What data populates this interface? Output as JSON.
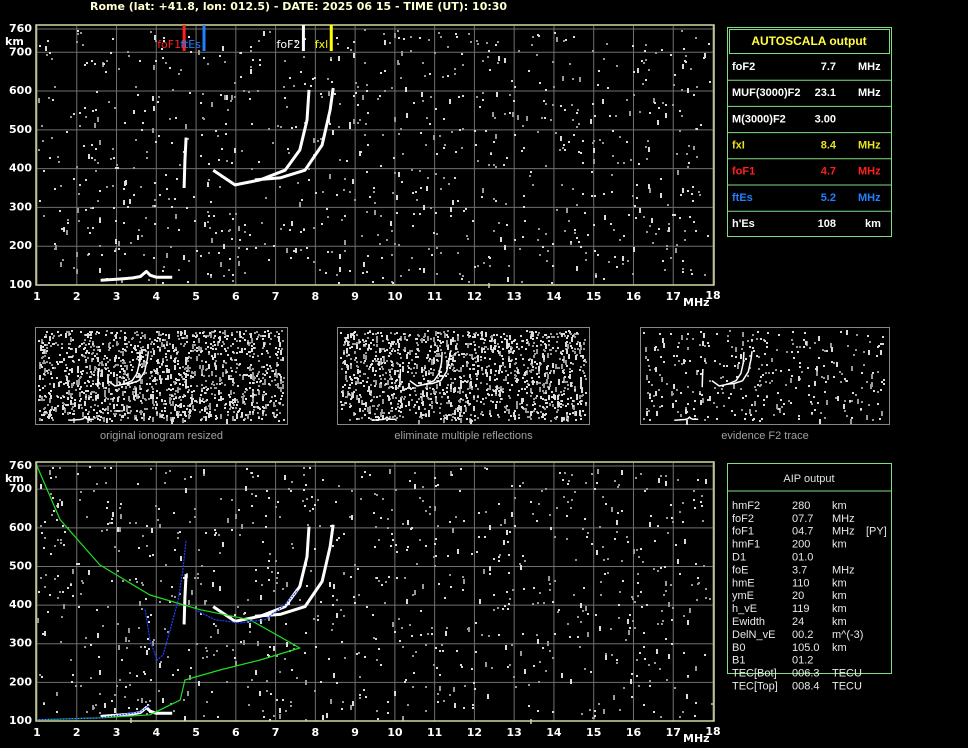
{
  "header": "Rome (lat: +41.8, lon: 012.5) - DATE: 2025 06 15 - TIME (UT): 10:30",
  "chart_data": [
    {
      "type": "line",
      "xlim": [
        1,
        18
      ],
      "ylim": [
        100,
        760
      ],
      "xticks": [
        1,
        2,
        3,
        4,
        5,
        6,
        7,
        8,
        9,
        10,
        11,
        12,
        13,
        14,
        15,
        16,
        17,
        18
      ],
      "yticks": [
        100,
        200,
        300,
        400,
        500,
        600,
        700,
        760
      ],
      "xlabel": "MHz",
      "ylabel": "km",
      "grid": true,
      "markers": [
        {
          "label": "foF1",
          "value": 4.7,
          "color": "#ff2020"
        },
        {
          "label": "ftEs",
          "value": 5.2,
          "color": "#2080ff"
        },
        {
          "label": "foF2",
          "value": 7.7,
          "color": "#ffffff"
        },
        {
          "label": "fxl",
          "value": 8.4,
          "color": "#ffff00"
        }
      ],
      "series": [
        {
          "color": "#ffffff",
          "x": [
            2.6,
            3.0,
            3.4,
            3.6,
            3.75,
            3.85,
            4.0,
            4.4
          ],
          "y": [
            112,
            115,
            118,
            122,
            135,
            125,
            120,
            120
          ]
        },
        {
          "color": "#ffffff",
          "x": [
            4.7,
            4.72,
            4.75
          ],
          "y": [
            350,
            420,
            480
          ]
        },
        {
          "color": "#ffffff",
          "x": [
            5.43,
            5.98,
            6.61,
            7.24,
            7.61,
            7.79,
            7.84
          ],
          "y": [
            396,
            358,
            371,
            396,
            448,
            525,
            603
          ]
        },
        {
          "color": "#ffffff",
          "x": [
            6.48,
            7.11,
            7.74,
            8.17,
            8.37,
            8.45
          ],
          "y": [
            371,
            376,
            396,
            461,
            551,
            608
          ]
        }
      ]
    },
    {
      "type": "line",
      "xlim": [
        1,
        18
      ],
      "ylim": [
        100,
        760
      ],
      "xticks": [
        1,
        2,
        3,
        4,
        5,
        6,
        7,
        8,
        9,
        10,
        11,
        12,
        13,
        14,
        15,
        16,
        17,
        18
      ],
      "yticks": [
        100,
        200,
        300,
        400,
        500,
        600,
        700,
        760
      ],
      "xlabel": "MHz",
      "ylabel": "km",
      "grid": true,
      "series": [
        {
          "color": "#ffffff",
          "x": [
            2.6,
            3.0,
            3.4,
            3.6,
            3.75,
            3.85,
            4.0,
            4.4
          ],
          "y": [
            112,
            115,
            118,
            122,
            135,
            125,
            120,
            120
          ]
        },
        {
          "color": "#ffffff",
          "x": [
            4.7,
            4.72,
            4.75
          ],
          "y": [
            350,
            420,
            480
          ]
        },
        {
          "color": "#ffffff",
          "x": [
            5.43,
            5.98,
            6.61,
            7.24,
            7.61,
            7.79,
            7.84
          ],
          "y": [
            396,
            358,
            371,
            396,
            448,
            525,
            603
          ]
        },
        {
          "color": "#ffffff",
          "x": [
            6.48,
            7.11,
            7.74,
            8.17,
            8.37,
            8.45
          ],
          "y": [
            371,
            376,
            396,
            461,
            551,
            608
          ]
        },
        {
          "color": "#22dd22",
          "x": [
            1,
            1.58,
            2.58,
            3.84,
            5.1,
            6.36,
            7.61,
            6.61,
            5.6,
            4.72,
            4.6,
            3.84,
            2.58,
            1
          ],
          "y": [
            760,
            621,
            504,
            426,
            388,
            362,
            289,
            258,
            232,
            206,
            154,
            116,
            108,
            103
          ]
        },
        {
          "color": "#2040ff",
          "x": [
            1,
            2.58,
            3.59,
            3.84
          ],
          "y": [
            103,
            108,
            123,
            141
          ]
        },
        {
          "color": "#2040ff",
          "x": [
            3.72,
            3.84,
            4.02,
            4.17,
            4.35,
            4.55,
            4.67,
            4.75
          ],
          "y": [
            388,
            310,
            258,
            271,
            336,
            413,
            491,
            569
          ]
        },
        {
          "color": "#2040ff",
          "x": [
            4.97,
            5.48,
            6.11,
            6.73,
            7.24,
            7.56
          ],
          "y": [
            388,
            362,
            354,
            362,
            401,
            439
          ]
        }
      ]
    }
  ],
  "thumbnails": [
    {
      "caption": "original ionogram resized"
    },
    {
      "caption": "eliminate multiple reflections"
    },
    {
      "caption": "evidence F2 trace"
    }
  ],
  "autoscala": {
    "title": "AUTOSCALA output",
    "rows": [
      {
        "label": "foF2",
        "value": 7.7,
        "unit": "MHz",
        "color": "#ffffff"
      },
      {
        "label": "MUF(3000)F2",
        "value": 23.1,
        "unit": "MHz",
        "color": "#ffffff"
      },
      {
        "label": "M(3000)F2",
        "value": "3.00",
        "color": "#ffffff"
      },
      {
        "label": "fxI",
        "value": 8.4,
        "unit": "MHz",
        "color": "#e8e020"
      },
      {
        "label": "foF1",
        "value": 4.7,
        "unit": "MHz",
        "color": "#ff2020"
      },
      {
        "label": "ftEs",
        "value": 5.2,
        "unit": "MHz",
        "color": "#2080ff"
      },
      {
        "label": "h'Es",
        "value": 108,
        "unit": "km",
        "color": "#ffffff"
      }
    ]
  },
  "aip": {
    "title": "AIP output",
    "rows": [
      [
        "hmF2",
        "280",
        "km"
      ],
      [
        "foF2",
        "07.7",
        "MHz"
      ],
      [
        "foF1",
        "04.7",
        "MHz",
        "[PY]"
      ],
      [
        "hmF1",
        "200",
        "km"
      ],
      [
        "D1",
        "01.0"
      ],
      [
        "foE",
        "3.7",
        "MHz"
      ],
      [
        "hmE",
        "110",
        "km"
      ],
      [
        "ymE",
        "20",
        "km"
      ],
      [
        "h_vE",
        "119",
        "km"
      ],
      [
        "Ewidth",
        "24",
        "km"
      ],
      [
        "DelN_vE",
        "00.2",
        "m^(-3)"
      ],
      [
        "B0",
        "105.0",
        "km"
      ],
      [
        "B1",
        "01.2"
      ],
      [
        "TEC[Bot]",
        "006.3",
        "TECU"
      ],
      [
        "TEC[Top]",
        "008.4",
        "TECU"
      ]
    ]
  }
}
